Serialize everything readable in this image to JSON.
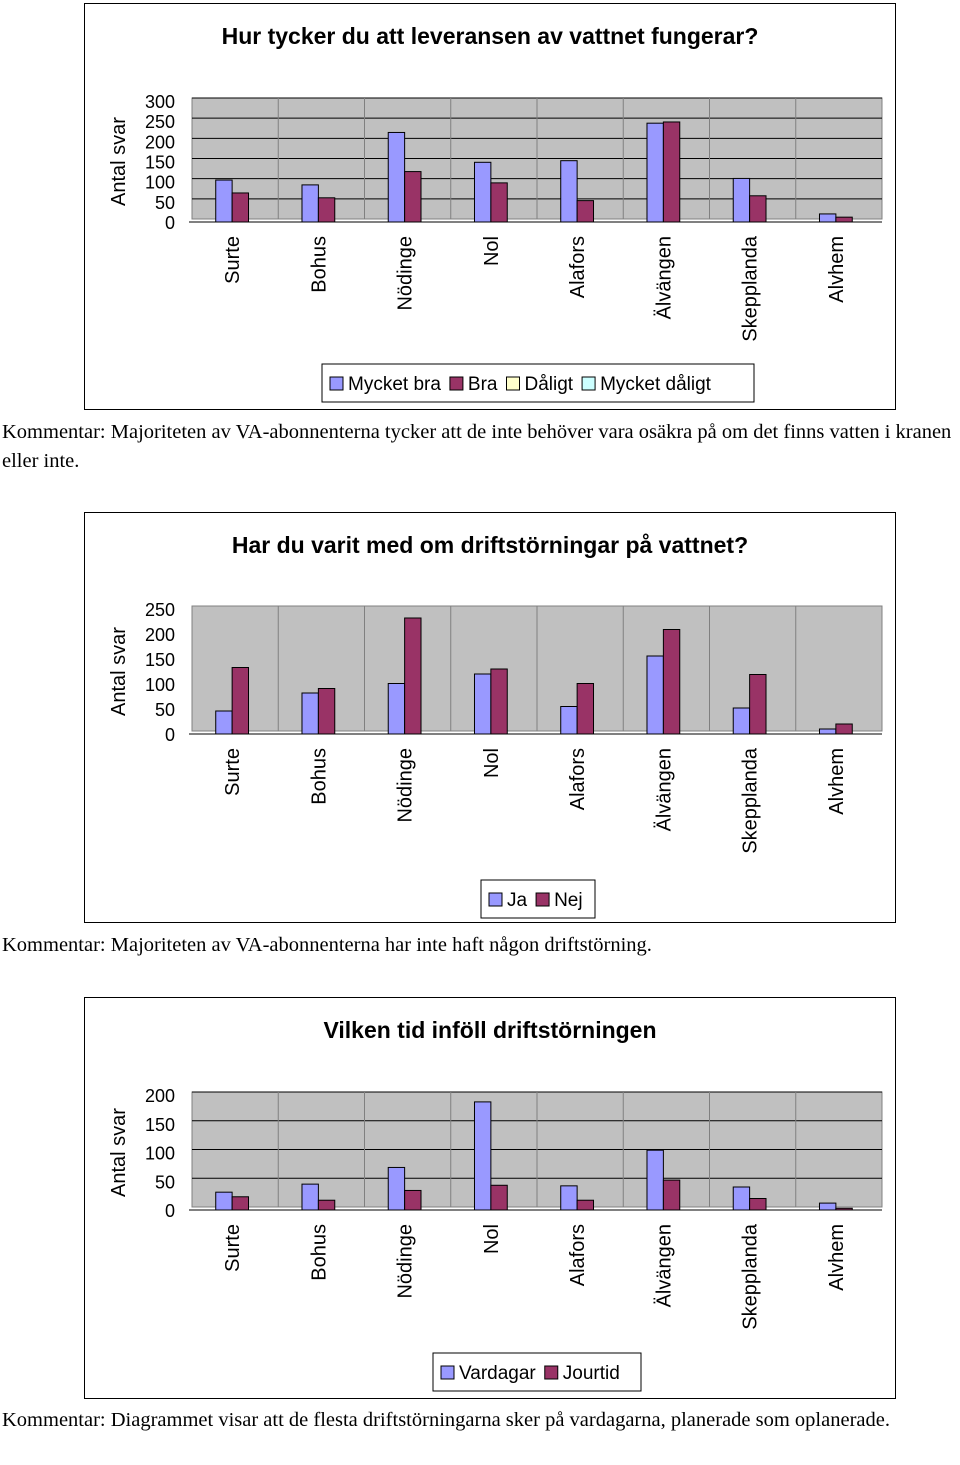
{
  "colors": {
    "series_blue": "#9999ff",
    "series_maroon": "#993366",
    "series_cream": "#ffffcc",
    "series_cyan": "#ccffff",
    "plot_area": "#c0c0c0"
  },
  "charts": [
    {
      "y_title": "Antal svar",
      "comment": "Kommentar: Majoriteten av VA-abonnenterna tycker att de inte behöver vara osäkra på om det finns vatten i kranen eller inte."
    },
    {
      "y_title": "Antal svar",
      "comment": "Kommentar: Majoriteten av VA-abonnenterna har inte haft någon driftstörning."
    },
    {
      "y_title": "Antal svar",
      "comment": "Kommentar: Diagrammet visar att de flesta driftstörningarna sker på vardagarna, planerade som oplanerade."
    }
  ],
  "chart_data": [
    {
      "type": "bar",
      "title": "Hur tycker du att leveransen av vattnet fungerar?",
      "ylabel": "Antal svar",
      "xlabel": "",
      "ylim": [
        0,
        300
      ],
      "yticks": [
        0,
        50,
        100,
        150,
        200,
        250,
        300
      ],
      "categories": [
        "Surte",
        "Bohus",
        "Nödinge",
        "Nol",
        "Alafors",
        "Älvängen",
        "Skepplanda",
        "Alvhem"
      ],
      "series": [
        {
          "name": "Mycket bra",
          "color": "#9999ff",
          "values": [
            104,
            92,
            222,
            148,
            152,
            245,
            108,
            20
          ]
        },
        {
          "name": "Bra",
          "color": "#993366",
          "values": [
            72,
            60,
            125,
            97,
            53,
            248,
            65,
            12
          ]
        },
        {
          "name": "Dåligt",
          "color": "#ffffcc",
          "values": [
            0,
            0,
            0,
            0,
            0,
            0,
            0,
            0
          ]
        },
        {
          "name": "Mycket dåligt",
          "color": "#ccffff",
          "values": [
            0,
            0,
            0,
            0,
            0,
            0,
            0,
            0
          ]
        }
      ],
      "grid": true,
      "legend": "bottom"
    },
    {
      "type": "bar",
      "title": "Har du varit med om driftstörningar på vattnet?",
      "ylabel": "Antal svar",
      "xlabel": "",
      "ylim": [
        0,
        250
      ],
      "yticks": [
        0,
        50,
        100,
        150,
        200,
        250
      ],
      "categories": [
        "Surte",
        "Bohus",
        "Nödinge",
        "Nol",
        "Alafors",
        "Älvängen",
        "Skepplanda",
        "Alvhem"
      ],
      "series": [
        {
          "name": "Ja",
          "color": "#9999ff",
          "values": [
            46,
            82,
            101,
            120,
            55,
            156,
            52,
            10
          ]
        },
        {
          "name": "Nej",
          "color": "#993366",
          "values": [
            133,
            91,
            232,
            130,
            101,
            209,
            119,
            20
          ]
        }
      ],
      "grid": false,
      "legend": "bottom"
    },
    {
      "type": "bar",
      "title": "Vilken tid inföll driftstörningen",
      "ylabel": "Antal svar",
      "xlabel": "",
      "ylim": [
        0,
        200
      ],
      "yticks": [
        0,
        50,
        100,
        150,
        200
      ],
      "categories": [
        "Surte",
        "Bohus",
        "Nödinge",
        "Nol",
        "Alafors",
        "Älvängen",
        "Skepplanda",
        "Alvhem"
      ],
      "series": [
        {
          "name": "Vardagar",
          "color": "#9999ff",
          "values": [
            31,
            45,
            74,
            188,
            42,
            104,
            40,
            12
          ]
        },
        {
          "name": "Jourtid",
          "color": "#993366",
          "values": [
            23,
            17,
            34,
            43,
            17,
            52,
            20,
            3
          ]
        }
      ],
      "grid": true,
      "legend": "bottom"
    }
  ]
}
